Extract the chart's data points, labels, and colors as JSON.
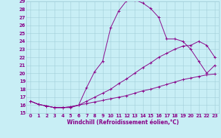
{
  "xlabel": "Windchill (Refroidissement éolien,°C)",
  "background_color": "#c8eef5",
  "grid_color": "#a0ccd8",
  "line_color": "#880088",
  "xlim": [
    -0.5,
    23.5
  ],
  "ylim": [
    15,
    29
  ],
  "xticks": [
    0,
    1,
    2,
    3,
    4,
    5,
    6,
    7,
    8,
    9,
    10,
    11,
    12,
    13,
    14,
    15,
    16,
    17,
    18,
    19,
    20,
    21,
    22,
    23
  ],
  "yticks": [
    15,
    16,
    17,
    18,
    19,
    20,
    21,
    22,
    23,
    24,
    25,
    26,
    27,
    28,
    29
  ],
  "curve1_x": [
    0,
    1,
    2,
    3,
    4,
    5,
    6,
    7,
    8,
    9,
    10,
    11,
    12,
    13,
    14,
    15,
    16,
    17,
    18,
    19,
    20,
    21,
    22,
    23
  ],
  "curve1_y": [
    16.5,
    16.1,
    15.9,
    15.7,
    15.7,
    15.7,
    16.0,
    18.2,
    20.2,
    21.5,
    25.7,
    27.8,
    29.1,
    29.2,
    28.8,
    28.1,
    27.0,
    24.3,
    24.3,
    24.0,
    23.0,
    21.5,
    20.0,
    21.0
  ],
  "curve2_x": [
    0,
    1,
    2,
    3,
    4,
    5,
    6,
    7,
    8,
    9,
    10,
    11,
    12,
    13,
    14,
    15,
    16,
    17,
    18,
    19,
    20,
    21,
    22,
    23
  ],
  "curve2_y": [
    16.5,
    16.1,
    15.9,
    15.7,
    15.7,
    15.8,
    16.0,
    16.5,
    17.0,
    17.5,
    18.0,
    18.7,
    19.3,
    20.0,
    20.7,
    21.3,
    22.0,
    22.5,
    23.0,
    23.4,
    23.5,
    24.0,
    23.5,
    22.0
  ],
  "curve3_x": [
    0,
    1,
    2,
    3,
    4,
    5,
    6,
    7,
    8,
    9,
    10,
    11,
    12,
    13,
    14,
    15,
    16,
    17,
    18,
    19,
    20,
    21,
    22,
    23
  ],
  "curve3_y": [
    16.5,
    16.1,
    15.9,
    15.7,
    15.7,
    15.8,
    16.0,
    16.2,
    16.4,
    16.6,
    16.8,
    17.0,
    17.2,
    17.5,
    17.8,
    18.0,
    18.3,
    18.6,
    18.9,
    19.2,
    19.4,
    19.6,
    19.8,
    19.9
  ],
  "xlabel_fontsize": 5.5,
  "tick_fontsize": 4.8
}
